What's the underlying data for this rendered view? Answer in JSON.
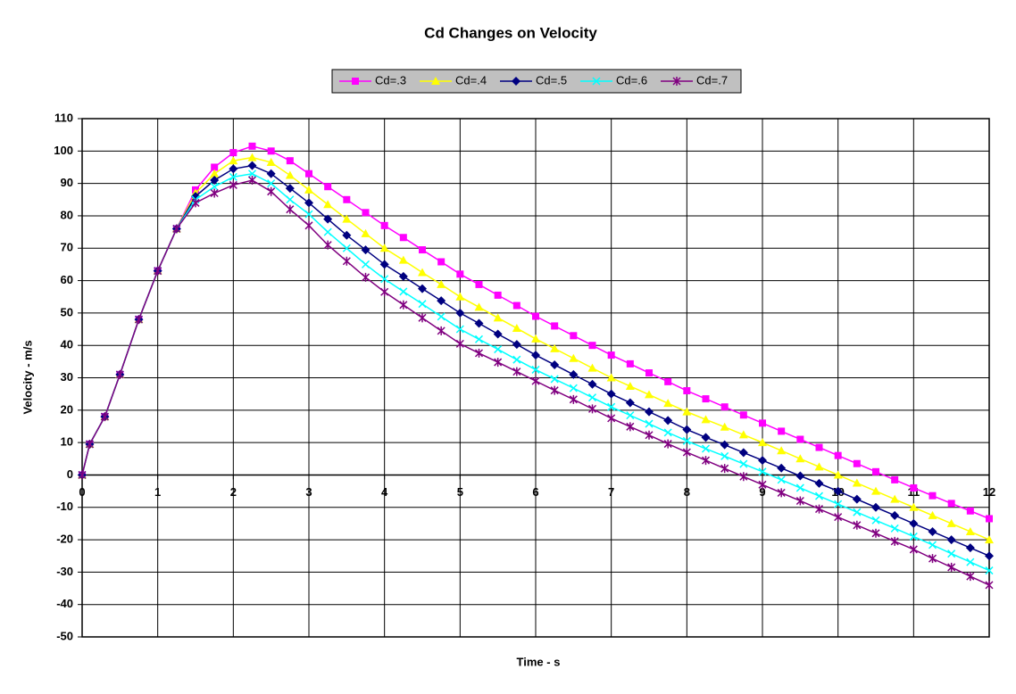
{
  "chart_data": {
    "type": "line",
    "title": "Cd Changes on Velocity",
    "x_label": "Time - s",
    "y_label": "Velocity - m/s",
    "x": [
      0,
      0.1,
      0.3,
      0.5,
      0.75,
      1,
      1.25,
      1.5,
      1.75,
      2,
      2.25,
      2.5,
      2.75,
      3,
      3.25,
      3.5,
      3.75,
      4,
      4.25,
      4.5,
      4.75,
      5,
      5.25,
      5.5,
      5.75,
      6,
      6.25,
      6.5,
      6.75,
      7,
      7.25,
      7.5,
      7.75,
      8,
      8.25,
      8.5,
      8.75,
      9,
      9.25,
      9.5,
      9.75,
      10,
      10.25,
      10.5,
      10.75,
      11,
      11.25,
      11.5,
      11.75,
      12
    ],
    "series": [
      {
        "name": "Cd=.3",
        "color": "#ff00ff",
        "marker": "square",
        "values": [
          0,
          9.5,
          18,
          31,
          48,
          63,
          76,
          88,
          95,
          99.5,
          101.5,
          100,
          97,
          93,
          89,
          85,
          81,
          77,
          73.3,
          69.5,
          65.8,
          62,
          58.8,
          55.5,
          52.3,
          49,
          46,
          43,
          40,
          37,
          34.3,
          31.5,
          28.8,
          26,
          23.5,
          21,
          18.5,
          16,
          13.5,
          11,
          8.5,
          6,
          3.5,
          1,
          -1.5,
          -4,
          -6.4,
          -8.8,
          -11.1,
          -13.5
        ]
      },
      {
        "name": "Cd=.4",
        "color": "#ffff00",
        "marker": "triangle",
        "values": [
          0,
          9.5,
          18,
          31,
          48,
          63,
          76,
          87,
          93,
          97,
          98,
          96.5,
          92.5,
          88,
          83.5,
          79,
          74.5,
          70,
          66.3,
          62.5,
          58.8,
          55,
          51.8,
          48.5,
          45.3,
          42,
          39,
          36,
          33,
          30,
          27.4,
          24.8,
          22.1,
          19.5,
          17.1,
          14.8,
          12.4,
          10,
          7.5,
          5,
          2.5,
          0,
          -2.5,
          -5,
          -7.5,
          -10,
          -12.5,
          -15,
          -17.5,
          -20
        ]
      },
      {
        "name": "Cd=.5",
        "color": "#000080",
        "marker": "diamond",
        "values": [
          0,
          9.5,
          18,
          31,
          48,
          63,
          76,
          86,
          91,
          94.5,
          95.5,
          93,
          88.5,
          84,
          79,
          74,
          69.5,
          65,
          61.3,
          57.5,
          53.8,
          50,
          46.8,
          43.5,
          40.3,
          37,
          34,
          31,
          28,
          25,
          22.3,
          19.5,
          16.8,
          14,
          11.6,
          9.3,
          6.9,
          4.5,
          2.1,
          -0.3,
          -2.6,
          -5,
          -7.5,
          -10,
          -12.5,
          -15,
          -17.5,
          -20,
          -22.5,
          -25
        ]
      },
      {
        "name": "Cd=.6",
        "color": "#00ffff",
        "marker": "x",
        "values": [
          0,
          9.5,
          18,
          31,
          48,
          63,
          76,
          85,
          89,
          92,
          93,
          90,
          85,
          80.5,
          75,
          70,
          65,
          60.5,
          56.6,
          52.8,
          48.9,
          45,
          41.9,
          38.8,
          35.6,
          32.5,
          29.6,
          26.8,
          23.9,
          21,
          18.4,
          15.8,
          13.1,
          10.5,
          8.1,
          5.8,
          3.4,
          1,
          -1.5,
          -4,
          -6.5,
          -9,
          -11.5,
          -14,
          -16.5,
          -19,
          -21.6,
          -24.3,
          -26.9,
          -29.5
        ]
      },
      {
        "name": "Cd=.7",
        "color": "#800080",
        "marker": "star",
        "values": [
          0,
          9.5,
          18,
          31,
          48,
          63,
          76,
          84,
          87,
          89.5,
          91,
          87.5,
          82,
          77,
          71,
          66,
          61,
          56.5,
          52.5,
          48.5,
          44.5,
          40.5,
          37.6,
          34.8,
          31.9,
          29,
          26.1,
          23.3,
          20.4,
          17.5,
          14.9,
          12.3,
          9.6,
          7,
          4.5,
          2,
          -0.5,
          -3,
          -5.5,
          -8,
          -10.5,
          -13,
          -15.5,
          -18,
          -20.5,
          -23,
          -25.8,
          -28.5,
          -31.3,
          -34
        ]
      }
    ],
    "xlim": [
      0,
      12
    ],
    "xticks": [
      0,
      1,
      2,
      3,
      4,
      5,
      6,
      7,
      8,
      9,
      10,
      11,
      12
    ],
    "ylim": [
      -50,
      110
    ],
    "yticks": [
      -50,
      -40,
      -30,
      -20,
      -10,
      0,
      10,
      20,
      30,
      40,
      50,
      60,
      70,
      80,
      90,
      100,
      110
    ],
    "grid": true,
    "legend": "top"
  }
}
